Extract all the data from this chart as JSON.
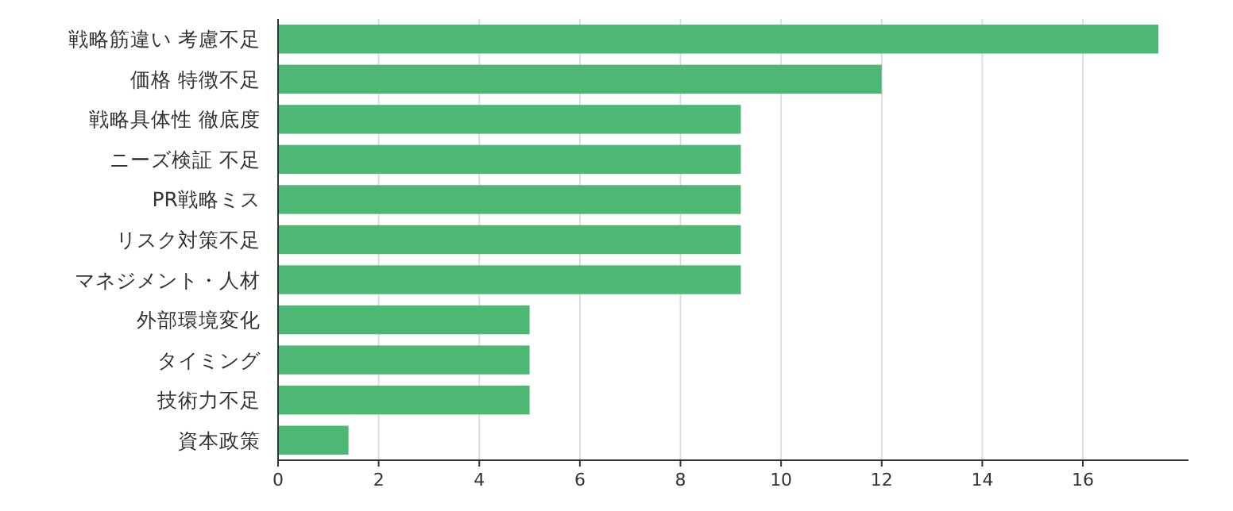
{
  "chart_data": {
    "type": "bar",
    "orientation": "horizontal",
    "categories": [
      "戦略筋違い 考慮不足",
      "価格 特徴不足",
      "戦略具体性 徹底度",
      "ニーズ検証 不足",
      "PR戦略ミス",
      "リスク対策不足",
      "マネジメント・人材",
      "外部環境変化",
      "タイミング",
      "技術力不足",
      "資本政策"
    ],
    "values": [
      17.5,
      12.0,
      9.2,
      9.2,
      9.2,
      9.2,
      9.2,
      5.0,
      5.0,
      5.0,
      1.4
    ],
    "color": "#4cb874",
    "xlim": [
      0,
      18.1
    ],
    "xticks": [
      0,
      2,
      4,
      6,
      8,
      10,
      12,
      14,
      16
    ],
    "grid": "x"
  }
}
